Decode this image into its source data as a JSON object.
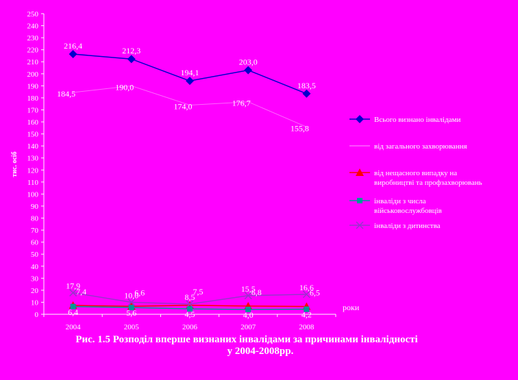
{
  "chart_data": {
    "type": "line",
    "ylabel": "тис. осіб",
    "xlabel": "роки",
    "ylim": [
      0,
      250
    ],
    "ystep": 10,
    "categories": [
      "2004",
      "2005",
      "2006",
      "2007",
      "2008"
    ],
    "series": [
      {
        "name": "Всього визнано інвалідами",
        "color": "#0000cc",
        "marker": "diamond",
        "values": [
          216.4,
          212.3,
          194.1,
          203.0,
          183.5
        ],
        "labels": [
          "216,4",
          "212,3",
          "194,1",
          "203,0",
          "183,5"
        ]
      },
      {
        "name": "від загального захворювання",
        "color": "#ff66ff",
        "marker": "none",
        "values": [
          184.5,
          190.0,
          174.0,
          176.7,
          155.8
        ],
        "labels": [
          "184,5",
          "190,0",
          "174,0",
          "176,7",
          "155,8"
        ]
      },
      {
        "name": "від нещасного випадку на виробництві та профзахворювань",
        "color": "#ff0000",
        "marker": "triangle",
        "values": [
          7.4,
          6.6,
          7.5,
          6.8,
          6.5
        ],
        "labels": [
          "7,4",
          "6,6",
          "7,5",
          "6,8",
          "6,5"
        ]
      },
      {
        "name": "інваліди з числа військовослужбовців",
        "color": "#009999",
        "marker": "square",
        "values": [
          6.4,
          5.6,
          4.5,
          4.0,
          4.2
        ],
        "labels": [
          "6,4",
          "5,6",
          "4,5",
          "4,0",
          "4,2"
        ]
      },
      {
        "name": "інваліди з дитинства",
        "color": "#9933cc",
        "marker": "x",
        "values": [
          17.9,
          10.0,
          8.5,
          15.5,
          16.6
        ],
        "labels": [
          "17,9",
          "10,0",
          "8,5",
          "15,5",
          "16,6"
        ]
      }
    ],
    "legend": "right",
    "grid": false
  },
  "caption": {
    "line1": "Рис. 1.5 Розподіл вперше визнаних інвалідами за причинами інвалідності",
    "line2": "у 2004-2008рр."
  }
}
